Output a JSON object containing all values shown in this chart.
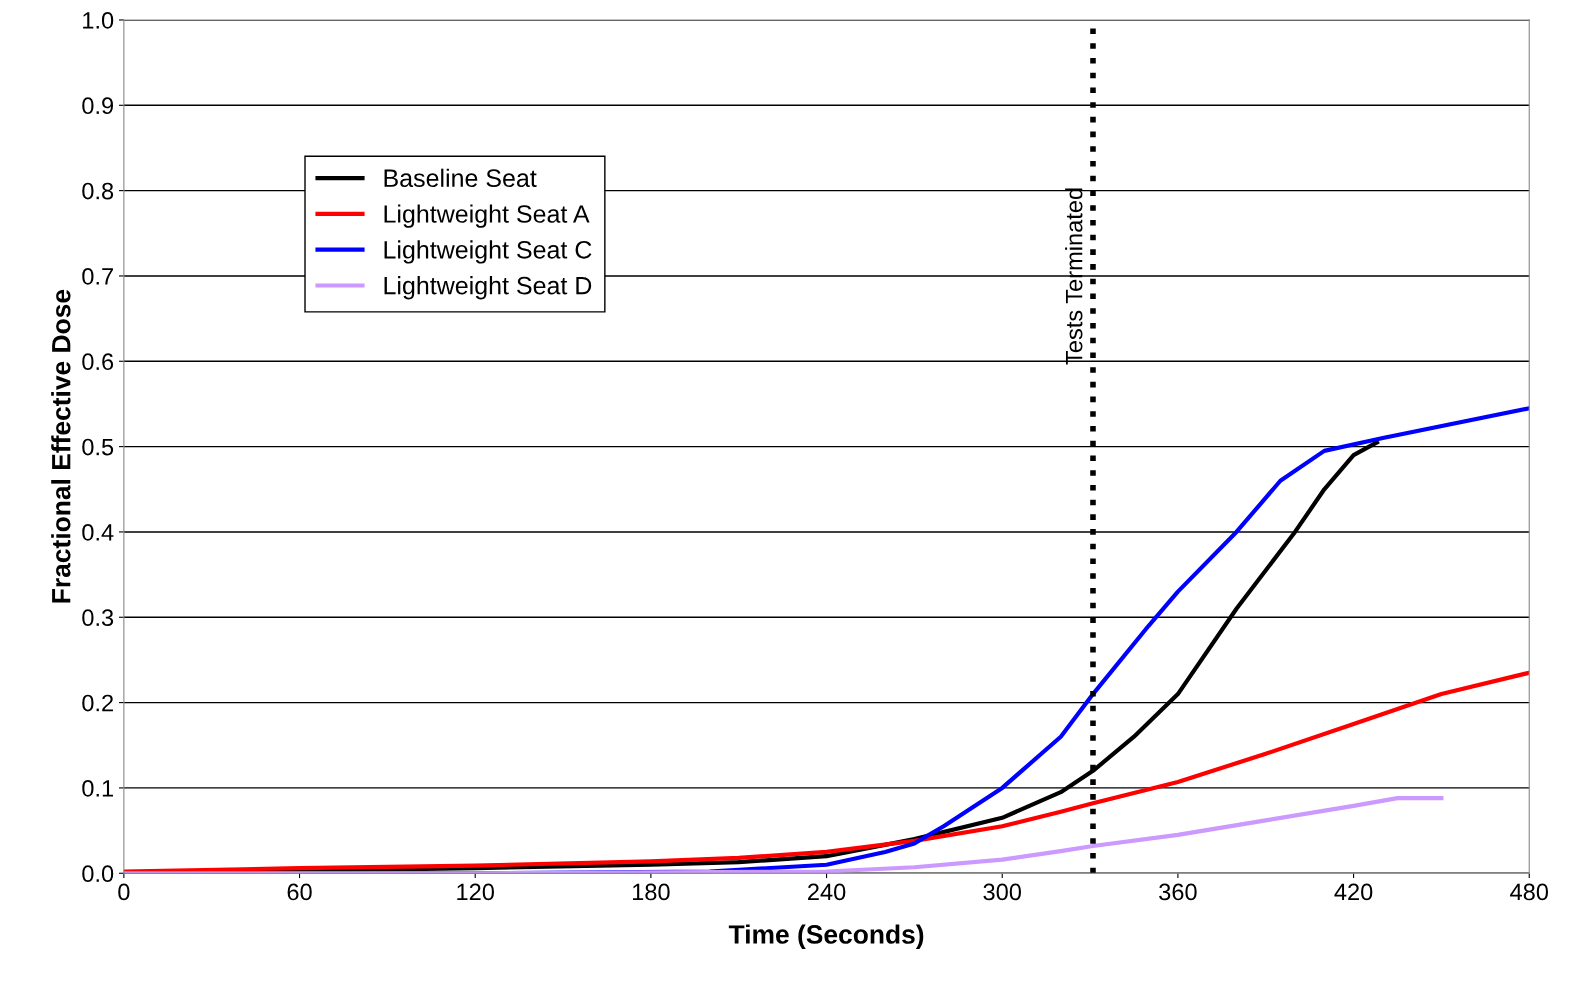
{
  "chart_data": {
    "type": "line",
    "xlabel": "Time (Seconds)",
    "ylabel": "Fractional Effective Dose",
    "xlim": [
      0,
      480
    ],
    "xticks": [
      0,
      60,
      120,
      180,
      240,
      300,
      360,
      420,
      480
    ],
    "ylim": [
      0,
      1.0
    ],
    "yticks": [
      {
        "value": 0,
        "label": "0.0"
      },
      {
        "value": 0.1,
        "label": "0.1"
      },
      {
        "value": 0.2,
        "label": "0.2"
      },
      {
        "value": 0.3,
        "label": "0.3"
      },
      {
        "value": 0.4,
        "label": "0.4"
      },
      {
        "value": 0.5,
        "label": "0.5"
      },
      {
        "value": 0.6,
        "label": "0.6"
      },
      {
        "value": 0.7,
        "label": "0.7"
      },
      {
        "value": 0.8,
        "label": "0.8"
      },
      {
        "value": 0.9,
        "label": "0.9"
      },
      {
        "value": 1.0,
        "label": "1.0"
      }
    ],
    "grid": "y",
    "legend": "top left",
    "marker": "none",
    "line_style": "solid",
    "ref_lines": [
      {
        "axis": "x",
        "value": 331,
        "label": "Tests Terminated",
        "color": "#000000",
        "line_style": "dotted"
      }
    ],
    "series": [
      {
        "name": "Baseline Seat",
        "color": "#000000",
        "x": [
          0,
          60,
          120,
          180,
          210,
          240,
          270,
          300,
          320,
          331,
          345,
          360,
          380,
          400,
          410,
          420,
          428
        ],
        "values": [
          0,
          0.003,
          0.006,
          0.01,
          0.013,
          0.02,
          0.04,
          0.065,
          0.095,
          0.12,
          0.16,
          0.21,
          0.31,
          0.4,
          0.45,
          0.49,
          0.505
        ]
      },
      {
        "name": "Lightweight Seat A",
        "color": "#ff0000",
        "x": [
          0,
          60,
          120,
          180,
          210,
          240,
          270,
          300,
          320,
          331,
          360,
          390,
          420,
          450,
          480
        ],
        "values": [
          0.002,
          0.006,
          0.009,
          0.014,
          0.018,
          0.025,
          0.038,
          0.055,
          0.072,
          0.082,
          0.107,
          0.14,
          0.175,
          0.21,
          0.235
        ]
      },
      {
        "name": "Lightweight Seat C",
        "color": "#0000ff",
        "x": [
          0,
          120,
          200,
          240,
          260,
          270,
          280,
          300,
          320,
          331,
          350,
          360,
          380,
          395,
          410,
          430,
          480
        ],
        "values": [
          0,
          0,
          0.002,
          0.01,
          0.025,
          0.035,
          0.055,
          0.1,
          0.16,
          0.21,
          0.29,
          0.33,
          0.4,
          0.46,
          0.495,
          0.51,
          0.545
        ]
      },
      {
        "name": "Lightweight Seat D",
        "color": "#cc99ff",
        "x": [
          0,
          120,
          240,
          270,
          300,
          320,
          331,
          360,
          390,
          420,
          435,
          450
        ],
        "values": [
          0,
          0,
          0.002,
          0.007,
          0.016,
          0.026,
          0.032,
          0.045,
          0.062,
          0.079,
          0.088,
          0.088
        ]
      }
    ]
  }
}
